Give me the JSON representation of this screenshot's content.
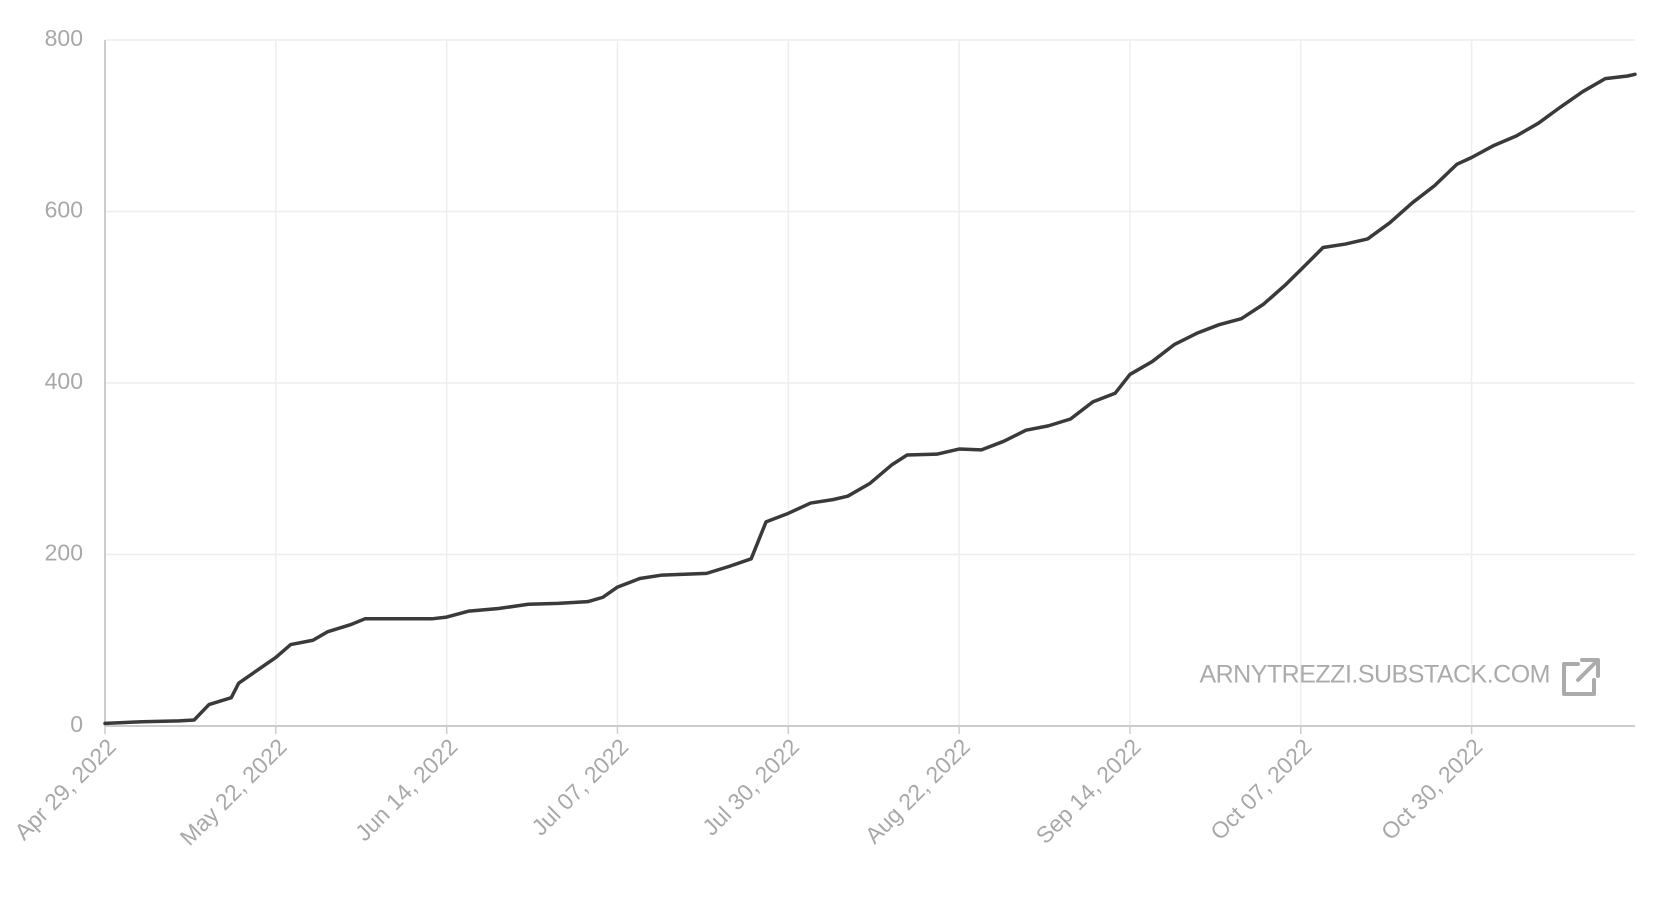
{
  "chart_data": {
    "type": "line",
    "watermark": "ARNYTREZZI.SUBSTACK.COM",
    "color": "#3a3a3a",
    "grid": true,
    "x": [
      "2022-04-29",
      "2022-05-04",
      "2022-05-09",
      "2022-05-11",
      "2022-05-13",
      "2022-05-16",
      "2022-05-17",
      "2022-05-20",
      "2022-05-22",
      "2022-05-24",
      "2022-05-27",
      "2022-05-29",
      "2022-06-01",
      "2022-06-03",
      "2022-06-08",
      "2022-06-12",
      "2022-06-14",
      "2022-06-17",
      "2022-06-21",
      "2022-06-25",
      "2022-06-29",
      "2022-07-03",
      "2022-07-05",
      "2022-07-07",
      "2022-07-10",
      "2022-07-13",
      "2022-07-16",
      "2022-07-19",
      "2022-07-22",
      "2022-07-25",
      "2022-07-27",
      "2022-07-30",
      "2022-08-02",
      "2022-08-05",
      "2022-08-07",
      "2022-08-10",
      "2022-08-13",
      "2022-08-15",
      "2022-08-19",
      "2022-08-22",
      "2022-08-25",
      "2022-08-28",
      "2022-08-31",
      "2022-09-03",
      "2022-09-06",
      "2022-09-09",
      "2022-09-12",
      "2022-09-14",
      "2022-09-17",
      "2022-09-20",
      "2022-09-23",
      "2022-09-26",
      "2022-09-29",
      "2022-10-02",
      "2022-10-05",
      "2022-10-07",
      "2022-10-10",
      "2022-10-13",
      "2022-10-16",
      "2022-10-19",
      "2022-10-22",
      "2022-10-25",
      "2022-10-28",
      "2022-10-30",
      "2022-11-02",
      "2022-11-05",
      "2022-11-08",
      "2022-11-11",
      "2022-11-14",
      "2022-11-17",
      "2022-11-20",
      "2022-11-21"
    ],
    "values": [
      3,
      5,
      6,
      7,
      25,
      33,
      50,
      68,
      80,
      95,
      100,
      110,
      118,
      125,
      125,
      125,
      127,
      134,
      137,
      142,
      143,
      145,
      150,
      162,
      172,
      176,
      177,
      178,
      186,
      195,
      238,
      248,
      260,
      264,
      268,
      283,
      305,
      316,
      317,
      323,
      322,
      332,
      345,
      350,
      358,
      378,
      388,
      410,
      425,
      445,
      458,
      468,
      475,
      492,
      515,
      532,
      558,
      562,
      568,
      587,
      610,
      630,
      655,
      663,
      677,
      688,
      703,
      722,
      740,
      755,
      758,
      760
    ],
    "xlim": [
      "2022-04-29",
      "2022-11-21"
    ],
    "xticks": [
      {
        "value": "2022-04-29",
        "label": "Apr 29, 2022"
      },
      {
        "value": "2022-05-22",
        "label": "May 22, 2022"
      },
      {
        "value": "2022-06-14",
        "label": "Jun 14, 2022"
      },
      {
        "value": "2022-07-07",
        "label": "Jul 07, 2022"
      },
      {
        "value": "2022-07-30",
        "label": "Jul 30, 2022"
      },
      {
        "value": "2022-08-22",
        "label": "Aug 22, 2022"
      },
      {
        "value": "2022-09-14",
        "label": "Sep 14, 2022"
      },
      {
        "value": "2022-10-07",
        "label": "Oct 07, 2022"
      },
      {
        "value": "2022-10-30",
        "label": "Oct 30, 2022"
      }
    ],
    "ylim": [
      0,
      800
    ],
    "yticks": [
      0,
      200,
      400,
      600,
      800
    ]
  }
}
